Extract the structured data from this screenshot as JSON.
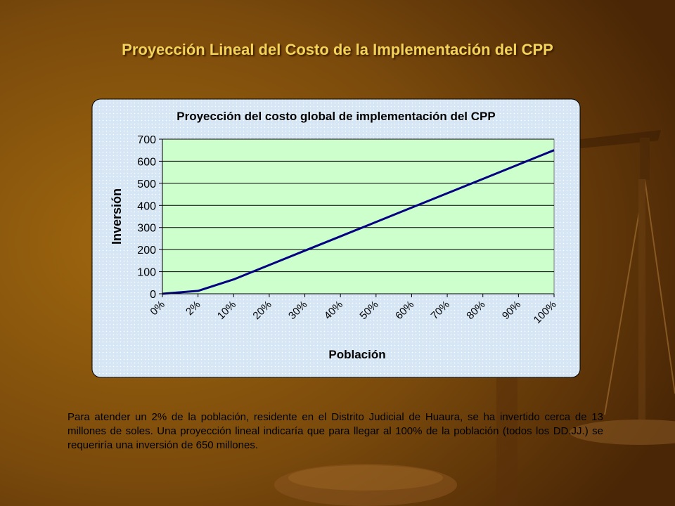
{
  "slide": {
    "title": "Proyección Lineal del Costo de la Implementación del CPP",
    "body_text": "Para atender un 2% de la población, residente en el Distrito Judicial de Huaura, se ha invertido cerca de 13 millones de soles. Una proyección lineal indicaría que para llegar al 100% de la población (todos los DD.JJ.) se requeriría una inversión de 650 millones.",
    "colors": {
      "background_dark": "#5a3008",
      "background_light": "#9c6410",
      "title": "#f3d35a",
      "chart_panel": "#dbe9f6",
      "plot_area": "#ccffcc",
      "line": "#000080"
    }
  },
  "chart_data": {
    "type": "line",
    "title": "Proyección del costo global de implementación del CPP",
    "xlabel": "Población",
    "ylabel": "Inversión",
    "categories": [
      "0%",
      "2%",
      "10%",
      "20%",
      "30%",
      "40%",
      "50%",
      "60%",
      "70%",
      "80%",
      "90%",
      "100%"
    ],
    "series": [
      {
        "values": [
          0,
          13,
          65,
          130,
          195,
          260,
          325,
          390,
          455,
          520,
          585,
          650
        ]
      }
    ],
    "ylim": [
      0,
      700
    ],
    "yticks": [
      0,
      100,
      200,
      300,
      400,
      500,
      600,
      700
    ],
    "grid": true,
    "legend": "none"
  }
}
